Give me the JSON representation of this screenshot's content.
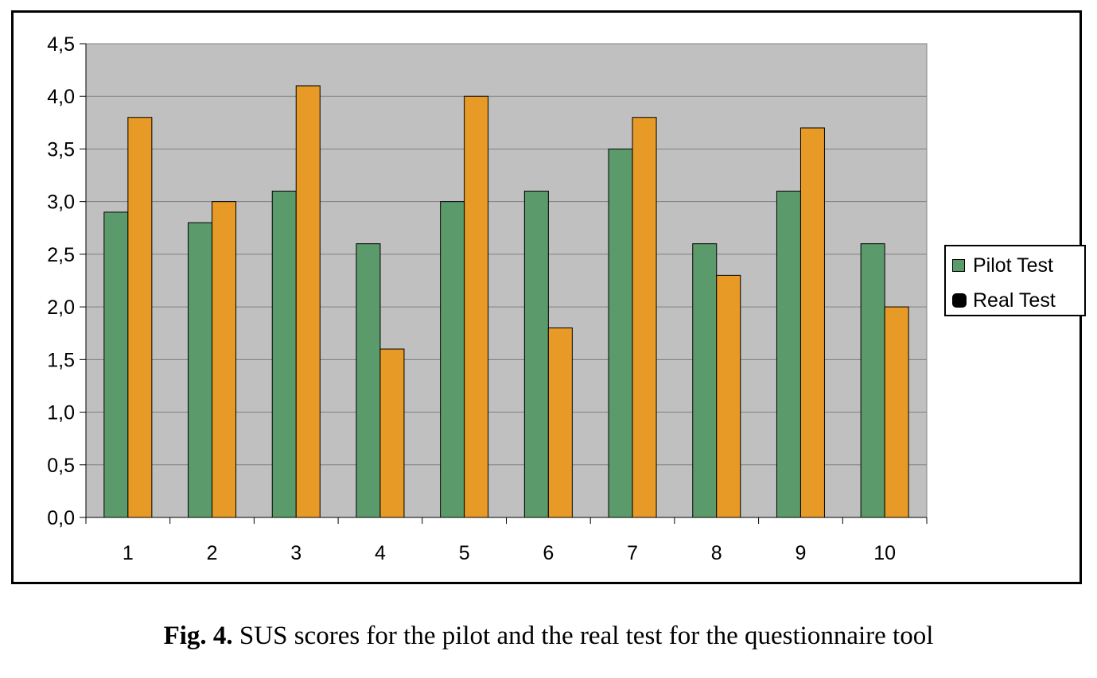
{
  "chart_data": {
    "type": "bar",
    "categories": [
      "1",
      "2",
      "3",
      "4",
      "5",
      "6",
      "7",
      "8",
      "9",
      "10"
    ],
    "series": [
      {
        "name": "Pilot Test",
        "color": "#5b9a6b",
        "values": [
          2.9,
          2.8,
          3.1,
          2.6,
          3.0,
          3.1,
          3.5,
          2.6,
          3.1,
          2.6
        ]
      },
      {
        "name": "Real Test",
        "color": "#e89a26",
        "values": [
          3.8,
          3.0,
          4.1,
          1.6,
          4.0,
          1.8,
          3.8,
          2.3,
          3.7,
          2.0
        ]
      }
    ],
    "ylim": [
      0,
      4.5
    ],
    "yticks": [
      "0,0",
      "0,5",
      "1,0",
      "1,5",
      "2,0",
      "2,5",
      "3,0",
      "3,5",
      "4,0",
      "4,5"
    ],
    "xlabel": "",
    "ylabel": "",
    "grid": true,
    "plot_background": "#c0c0c0",
    "legend_position": "right"
  },
  "caption": {
    "label": "Fig. 4.",
    "text": " SUS scores for the pilot and the real test for the questionnaire tool"
  }
}
